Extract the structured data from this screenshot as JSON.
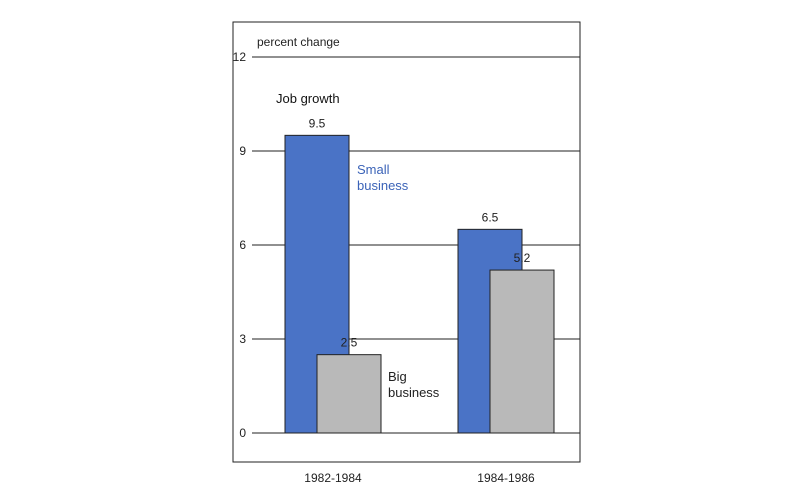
{
  "chart_data": {
    "type": "bar",
    "title": "Job growth",
    "ylabel": "percent change",
    "xlabel": "",
    "categories": [
      "1982-1984",
      "1984-1986"
    ],
    "ylim": [
      0,
      12
    ],
    "yticks": [
      "0",
      "3",
      "6",
      "9",
      "12"
    ],
    "grid": true,
    "legend": "inline labels beside bars",
    "series": [
      {
        "name": "Small\nbusiness",
        "values": [
          9.5,
          6.5
        ],
        "value_labels": [
          "9.5",
          "6.5"
        ],
        "color": "#4a73c6",
        "label_color": "#3b63b8"
      },
      {
        "name": "Big\nbusiness",
        "values": [
          2.5,
          5.2
        ],
        "value_labels": [
          "2.5",
          "5.2"
        ],
        "color": "#b9b9b9",
        "label_color": "#222222"
      }
    ]
  }
}
